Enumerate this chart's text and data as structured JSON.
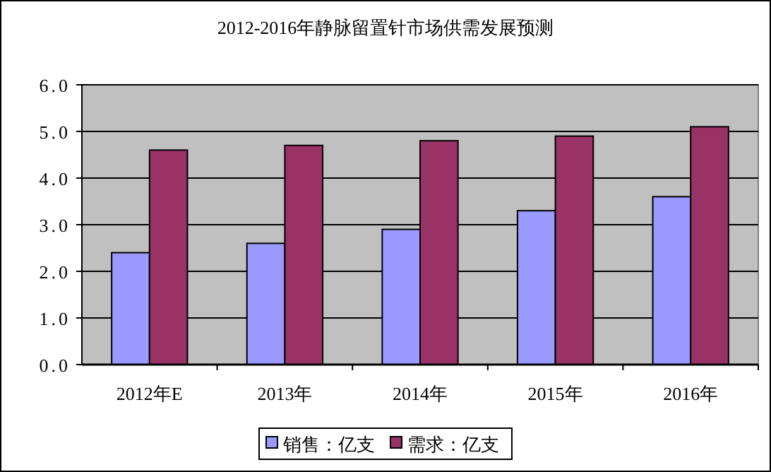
{
  "chart_data": {
    "type": "bar",
    "title": "2012-2016年静脉留置针市场供需发展预测",
    "categories": [
      "2012年E",
      "2013年",
      "2014年",
      "2015年",
      "2016年"
    ],
    "series": [
      {
        "name": "销售：亿支",
        "color": "#9999ff",
        "values": [
          2.4,
          2.6,
          2.9,
          3.3,
          3.6
        ]
      },
      {
        "name": "需求：亿支",
        "color": "#993366",
        "values": [
          4.6,
          4.7,
          4.8,
          4.9,
          5.1
        ]
      }
    ],
    "ylim": [
      0,
      6
    ],
    "yticks": [
      {
        "value": 0,
        "label": "0.0"
      },
      {
        "value": 1,
        "label": "1.0"
      },
      {
        "value": 2,
        "label": "2.0"
      },
      {
        "value": 3,
        "label": "3.0"
      },
      {
        "value": 4,
        "label": "4.0"
      },
      {
        "value": 5,
        "label": "5.0"
      },
      {
        "value": 6,
        "label": "6.0"
      }
    ],
    "grid": "y",
    "legend": "bottom"
  }
}
